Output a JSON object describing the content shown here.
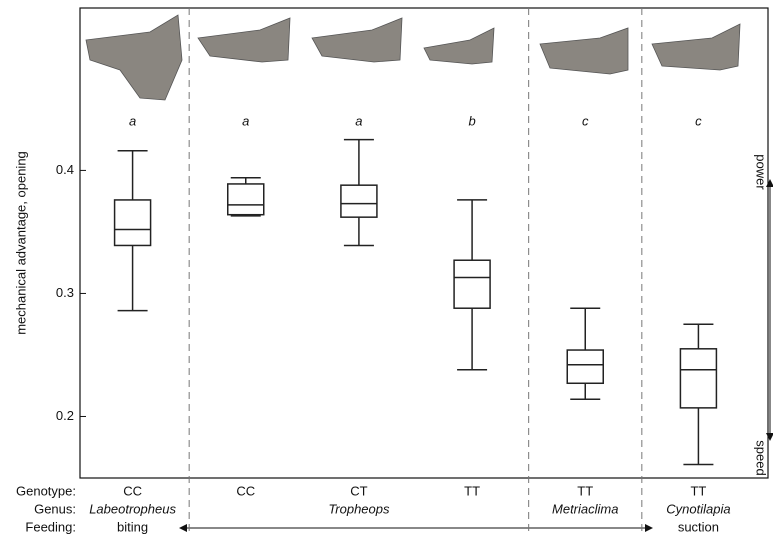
{
  "chart_data": {
    "type": "box",
    "ylabel": "mechanical advantage, opening",
    "categories": [
      "CC",
      "CC",
      "CT",
      "TT",
      "TT",
      "TT"
    ],
    "genera": [
      "Labeotropheus",
      null,
      "Tropheops",
      null,
      "Metriaclima",
      "Cynotilapia"
    ],
    "feeding": [
      "biting",
      null,
      null,
      null,
      null,
      "suction"
    ],
    "row_labels": [
      "Genotype:",
      "Genus:",
      "Feeding:"
    ],
    "significance": [
      "a",
      "a",
      "a",
      "b",
      "c",
      "c"
    ],
    "right_axis_labels": [
      "power",
      "speed"
    ],
    "boxes": [
      {
        "low": 0.286,
        "q1": 0.339,
        "median": 0.352,
        "q3": 0.376,
        "high": 0.416
      },
      {
        "low": 0.363,
        "q1": 0.364,
        "median": 0.372,
        "q3": 0.389,
        "high": 0.394
      },
      {
        "low": 0.339,
        "q1": 0.362,
        "median": 0.373,
        "q3": 0.388,
        "high": 0.425
      },
      {
        "low": 0.238,
        "q1": 0.288,
        "median": 0.313,
        "q3": 0.327,
        "high": 0.376
      },
      {
        "low": 0.214,
        "q1": 0.227,
        "median": 0.242,
        "q3": 0.254,
        "high": 0.288
      },
      {
        "low": 0.161,
        "q1": 0.207,
        "median": 0.238,
        "q3": 0.255,
        "high": 0.275
      }
    ],
    "color": "#222222",
    "ylim": [
      0.15,
      0.532
    ],
    "yticks": [
      0.2,
      0.3,
      0.4
    ]
  }
}
